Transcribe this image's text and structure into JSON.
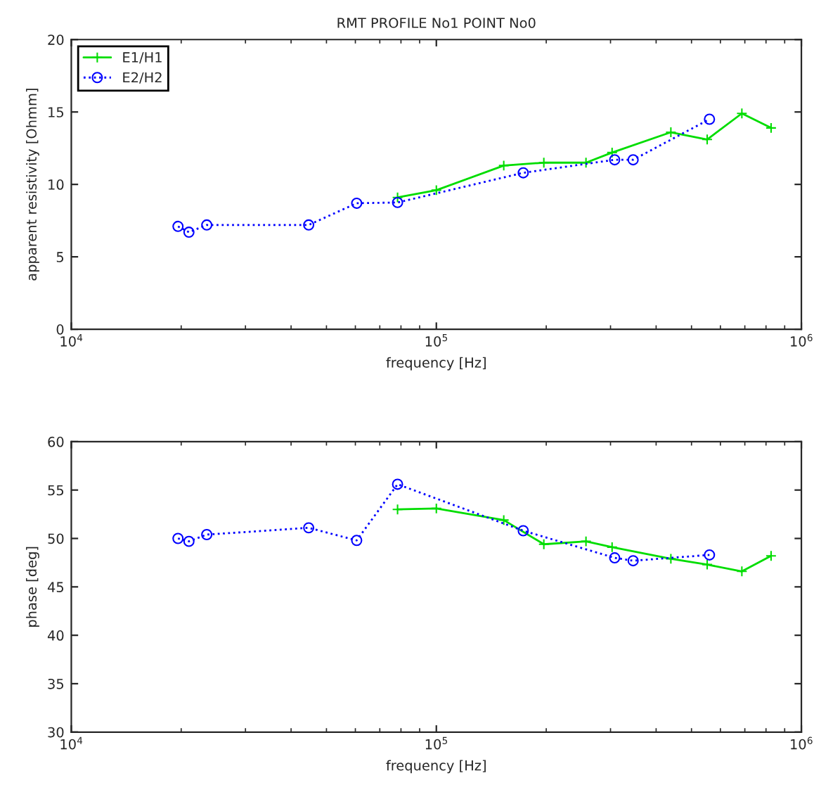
{
  "chart_data": [
    {
      "type": "line",
      "title": "RMT PROFILE No1 POINT No0",
      "xlabel": "frequency [Hz]",
      "ylabel": "apparent resistivity [Ohmm]",
      "log": "x",
      "grid": false,
      "legend": "top left",
      "xlim": [
        10000,
        1000000
      ],
      "xticks": [
        {
          "value": 10000,
          "label": "10$^{4}$"
        },
        {
          "value": 100000,
          "label": "10$^{5}$"
        },
        {
          "value": 1000000,
          "label": "10$^{6}$"
        }
      ],
      "ylim": [
        0,
        20
      ],
      "yticks": [
        0,
        5,
        10,
        15,
        20
      ],
      "series": [
        {
          "name": "E1/H1",
          "color": "#00dd00",
          "marker": "cross",
          "line_style": "solid",
          "x": [
            78300,
            100000,
            153000,
            197000,
            257000,
            303000,
            439000,
            552000,
            687000,
            826000
          ],
          "values": [
            9.1,
            9.6,
            11.3,
            11.5,
            11.5,
            12.2,
            13.6,
            13.1,
            14.9,
            13.9
          ]
        },
        {
          "name": "E2/H2",
          "color": "#0000ff",
          "marker": "circle",
          "line_style": "dotted",
          "x": [
            19600,
            21000,
            23500,
            44700,
            60500,
            78300,
            173000,
            308000,
            346000,
            560000
          ],
          "values": [
            7.1,
            6.7,
            7.2,
            7.2,
            8.7,
            8.75,
            10.8,
            11.7,
            11.7,
            14.5
          ]
        }
      ]
    },
    {
      "type": "line",
      "xlabel": "frequency [Hz]",
      "ylabel": "phase [deg]",
      "log": "x",
      "grid": false,
      "xlim": [
        10000,
        1000000
      ],
      "xticks": [
        {
          "value": 10000,
          "label": "10$^{4}$"
        },
        {
          "value": 100000,
          "label": "10$^{5}$"
        },
        {
          "value": 1000000,
          "label": "10$^{6}$"
        }
      ],
      "ylim": [
        30,
        60
      ],
      "yticks": [
        30,
        35,
        40,
        45,
        50,
        55,
        60
      ],
      "series": [
        {
          "color": "#00dd00",
          "marker": "cross",
          "line_style": "solid",
          "x": [
            78300,
            100000,
            153000,
            197000,
            257000,
            303000,
            439000,
            552000,
            687000,
            826000
          ],
          "values": [
            53.0,
            53.1,
            51.9,
            49.4,
            49.7,
            49.1,
            47.9,
            47.3,
            46.6,
            48.2
          ]
        },
        {
          "color": "#0000ff",
          "marker": "circle",
          "line_style": "dotted",
          "x": [
            19600,
            21000,
            23500,
            44700,
            60500,
            78300,
            173000,
            308000,
            346000,
            560000
          ],
          "values": [
            50.0,
            49.7,
            50.4,
            51.1,
            49.8,
            55.6,
            50.8,
            48.0,
            47.7,
            48.3
          ]
        }
      ]
    }
  ]
}
